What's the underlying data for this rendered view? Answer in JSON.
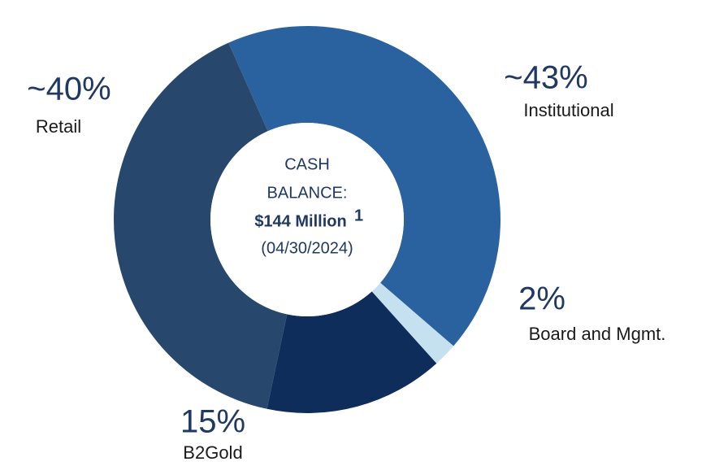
{
  "chart_data": {
    "type": "donut",
    "categories": [
      "Institutional",
      "Board and Mgmt.",
      "B2Gold",
      "Retail"
    ],
    "values": [
      43,
      2,
      15,
      40
    ],
    "value_labels": [
      "~43%",
      "2%",
      "15%",
      "~40%"
    ],
    "colors": [
      "#2a62a0",
      "#c5e0ee",
      "#0e2d5b",
      "#27476d"
    ],
    "center_text": [
      "CASH",
      "BALANCE:",
      "$144 Million",
      "1",
      "(04/30/2024)"
    ]
  }
}
